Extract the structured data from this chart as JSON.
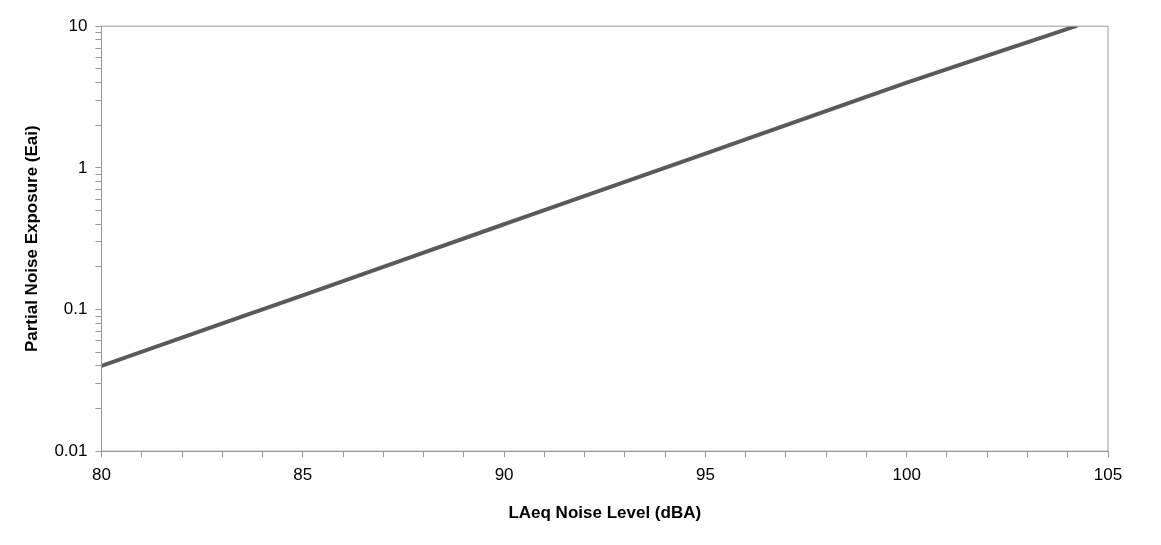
{
  "chart_data": {
    "type": "line",
    "xlabel": "LAeq Noise Level (dBA)",
    "ylabel": "Partial Noise Exposure (Eai)",
    "x": [
      80,
      85,
      90,
      95,
      100,
      104.2
    ],
    "series": [
      {
        "color": "#5a5a5a",
        "values": [
          0.04,
          0.126,
          0.4,
          1.26,
          4,
          10
        ]
      }
    ],
    "xlim": [
      80,
      105
    ],
    "xticks": [
      80,
      {
        "value": 81,
        "label": null
      },
      {
        "value": 82,
        "label": null
      },
      {
        "value": 83,
        "label": null
      },
      {
        "value": 84,
        "label": null
      },
      85,
      {
        "value": 86,
        "label": null
      },
      {
        "value": 87,
        "label": null
      },
      {
        "value": 88,
        "label": null
      },
      {
        "value": 89,
        "label": null
      },
      90,
      {
        "value": 91,
        "label": null
      },
      {
        "value": 92,
        "label": null
      },
      {
        "value": 93,
        "label": null
      },
      {
        "value": 94,
        "label": null
      },
      95,
      {
        "value": 96,
        "label": null
      },
      {
        "value": 97,
        "label": null
      },
      {
        "value": 98,
        "label": null
      },
      {
        "value": 99,
        "label": null
      },
      100,
      {
        "value": 101,
        "label": null
      },
      {
        "value": 102,
        "label": null
      },
      {
        "value": 103,
        "label": null
      },
      {
        "value": 104,
        "label": null
      },
      105
    ],
    "ylim": [
      0.01,
      10
    ],
    "yticks": [
      0.01,
      {
        "value": 0.02,
        "label": null
      },
      {
        "value": 0.03,
        "label": null
      },
      {
        "value": 0.04,
        "label": null
      },
      {
        "value": 0.05,
        "label": null
      },
      {
        "value": 0.06,
        "label": null
      },
      {
        "value": 0.07,
        "label": null
      },
      {
        "value": 0.08,
        "label": null
      },
      {
        "value": 0.09,
        "label": null
      },
      0.1,
      {
        "value": 0.2,
        "label": null
      },
      {
        "value": 0.3,
        "label": null
      },
      {
        "value": 0.4,
        "label": null
      },
      {
        "value": 0.5,
        "label": null
      },
      {
        "value": 0.6,
        "label": null
      },
      {
        "value": 0.7,
        "label": null
      },
      {
        "value": 0.8,
        "label": null
      },
      {
        "value": 0.9,
        "label": null
      },
      1,
      {
        "value": 2,
        "label": null
      },
      {
        "value": 3,
        "label": null
      },
      {
        "value": 4,
        "label": null
      },
      {
        "value": 5,
        "label": null
      },
      {
        "value": 6,
        "label": null
      },
      {
        "value": 7,
        "label": null
      },
      {
        "value": 8,
        "label": null
      },
      {
        "value": 9,
        "label": null
      },
      10
    ],
    "log": true,
    "grid": false,
    "legend": false,
    "marker": "none",
    "line_style": "solid"
  }
}
